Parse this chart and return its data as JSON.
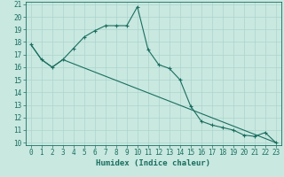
{
  "xlabel": "Humidex (Indice chaleur)",
  "bg_color": "#c8e8e0",
  "grid_color": "#aed4cc",
  "line_color": "#1a6e60",
  "xlim": [
    -0.5,
    23.5
  ],
  "ylim": [
    9.8,
    21.2
  ],
  "yticks": [
    10,
    11,
    12,
    13,
    14,
    15,
    16,
    17,
    18,
    19,
    20,
    21
  ],
  "xticks": [
    0,
    1,
    2,
    3,
    4,
    5,
    6,
    7,
    8,
    9,
    10,
    11,
    12,
    13,
    14,
    15,
    16,
    17,
    18,
    19,
    20,
    21,
    22,
    23
  ],
  "line1_x": [
    0,
    1,
    2,
    3,
    4,
    5,
    6,
    7,
    8,
    9,
    10,
    11,
    12,
    13,
    14,
    15,
    16,
    17,
    18,
    19,
    20,
    21,
    22,
    23
  ],
  "line1_y": [
    17.8,
    16.6,
    16.0,
    16.6,
    17.5,
    18.4,
    18.9,
    19.3,
    19.3,
    19.3,
    20.8,
    17.4,
    16.2,
    15.9,
    15.0,
    12.9,
    11.7,
    11.4,
    11.2,
    11.0,
    10.6,
    10.5,
    10.8,
    10.0
  ],
  "line2_x": [
    0,
    1,
    2,
    3,
    23
  ],
  "line2_y": [
    17.8,
    16.6,
    16.0,
    16.6,
    10.0
  ],
  "font_size_tick": 5.5,
  "font_size_label": 6.5
}
